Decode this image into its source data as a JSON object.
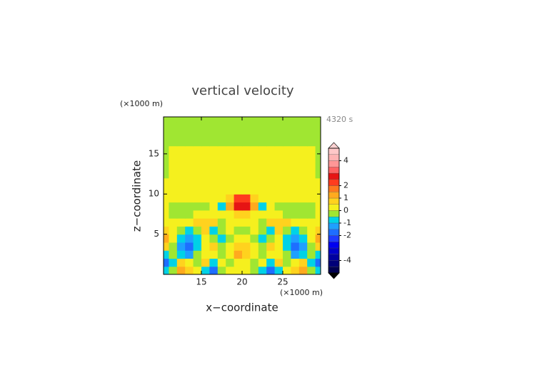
{
  "chart_data": {
    "type": "contour",
    "title": "vertical velocity",
    "xlabel": "x−coordinate",
    "ylabel": "z−coordinate",
    "x_unit": "(×1000 m)",
    "y_unit": "(×1000 m)",
    "time_label": "4320 s",
    "xlim": [
      10.35,
      29.65
    ],
    "ylim": [
      0,
      19.6
    ],
    "xticks": [
      15,
      20,
      25
    ],
    "yticks": [
      5,
      10,
      15
    ],
    "x": [
      10.5,
      11.5,
      12.5,
      13.5,
      14.5,
      15.5,
      16.5,
      17.5,
      18.5,
      19.5,
      20.5,
      21.5,
      22.5,
      23.5,
      24.5,
      25.5,
      26.5,
      27.5,
      28.5,
      29.5
    ],
    "z": [
      0.5,
      1.5,
      2.5,
      3.5,
      4.5,
      5.5,
      6.5,
      7.5,
      8.5,
      9.5,
      10.5,
      11.5,
      12.5,
      13.5,
      14.5,
      15.5,
      16.5,
      17.5,
      18.5,
      19.5
    ],
    "values": [
      [
        -0.75,
        -0.25,
        1.25,
        0.75,
        0.25,
        -0.75,
        -1.75,
        -0.25,
        0.25,
        0.25,
        0.25,
        -0.25,
        -0.75,
        -1.75,
        -0.75,
        0.25,
        0.75,
        1.25,
        -0.25,
        -0.75
      ],
      [
        -1.75,
        -0.75,
        0.75,
        0.25,
        -0.25,
        0.75,
        -0.75,
        0.25,
        -0.25,
        0.25,
        0.25,
        -0.25,
        0.25,
        -0.75,
        0.75,
        -0.25,
        0.25,
        0.75,
        -0.75,
        -1.75
      ],
      [
        -0.75,
        -0.25,
        -0.75,
        -1.25,
        -0.25,
        0.25,
        0.25,
        -0.25,
        0.25,
        1.25,
        0.75,
        0.25,
        -0.25,
        0.25,
        0.25,
        -0.25,
        -1.25,
        -0.75,
        -0.25,
        -0.75
      ],
      [
        0.75,
        -0.25,
        -1.25,
        -1.75,
        -0.75,
        0.25,
        0.75,
        -0.25,
        0.25,
        0.75,
        0.75,
        0.25,
        -0.25,
        0.75,
        0.25,
        -0.75,
        -1.75,
        -1.25,
        -0.25,
        0.75
      ],
      [
        1.25,
        0.25,
        -0.75,
        -1.25,
        -0.75,
        0.25,
        -0.25,
        -0.75,
        -0.25,
        0.25,
        0.25,
        -0.25,
        -0.75,
        -0.25,
        0.25,
        -0.75,
        -1.25,
        -0.75,
        0.25,
        1.25
      ],
      [
        0.75,
        0.25,
        -0.25,
        -0.75,
        -0.25,
        0.75,
        -0.75,
        -0.25,
        0.25,
        -0.25,
        -0.25,
        0.25,
        -0.25,
        -0.75,
        0.75,
        -0.25,
        -0.75,
        -0.25,
        0.25,
        0.75
      ],
      [
        0.25,
        0.25,
        0.25,
        0.25,
        0.75,
        0.75,
        0.75,
        -0.25,
        0.25,
        0.25,
        0.25,
        0.25,
        -0.25,
        0.75,
        0.75,
        0.75,
        0.25,
        0.25,
        0.25,
        0.25
      ],
      [
        0.25,
        -0.25,
        -0.25,
        -0.25,
        0.25,
        0.25,
        0.25,
        0.25,
        0.25,
        0.75,
        0.75,
        0.25,
        0.25,
        0.25,
        0.25,
        -0.25,
        -0.25,
        -0.25,
        -0.25,
        0.25
      ],
      [
        0.25,
        -0.25,
        -0.25,
        -0.25,
        -0.25,
        -0.25,
        0.25,
        -0.75,
        1.25,
        2.75,
        2.75,
        1.25,
        -0.75,
        0.25,
        -0.25,
        -0.25,
        -0.25,
        -0.25,
        -0.25,
        0.25
      ],
      [
        0.25,
        0.25,
        0.25,
        0.25,
        0.25,
        0.25,
        0.25,
        0.25,
        0.75,
        2.25,
        2.25,
        0.75,
        0.25,
        0.25,
        0.25,
        0.25,
        0.25,
        0.25,
        0.25,
        0.25
      ],
      [
        0.25,
        0.25,
        0.25,
        0.25,
        0.25,
        0.25,
        0.25,
        0.25,
        0.25,
        0.25,
        0.25,
        0.25,
        0.25,
        0.25,
        0.25,
        0.25,
        0.25,
        0.25,
        0.25,
        0.25
      ],
      [
        0.25,
        0.25,
        0.25,
        0.25,
        0.25,
        0.25,
        0.25,
        0.25,
        0.25,
        0.25,
        0.25,
        0.25,
        0.25,
        0.25,
        0.25,
        0.25,
        0.25,
        0.25,
        0.25,
        0.25
      ],
      [
        -0.25,
        0.25,
        0.25,
        0.25,
        0.25,
        0.25,
        0.25,
        0.25,
        0.25,
        0.25,
        0.25,
        0.25,
        0.25,
        0.25,
        0.25,
        0.25,
        0.25,
        0.25,
        0.25,
        -0.25
      ],
      [
        -0.25,
        0.25,
        0.25,
        0.25,
        0.25,
        0.25,
        0.25,
        0.25,
        0.25,
        0.25,
        0.25,
        0.25,
        0.25,
        0.25,
        0.25,
        0.25,
        0.25,
        0.25,
        0.25,
        -0.25
      ],
      [
        -0.25,
        0.25,
        0.25,
        0.25,
        0.25,
        0.25,
        0.25,
        0.25,
        0.25,
        0.25,
        0.25,
        0.25,
        0.25,
        0.25,
        0.25,
        0.25,
        0.25,
        0.25,
        0.25,
        -0.25
      ],
      [
        -0.25,
        0.25,
        0.25,
        0.25,
        0.25,
        0.25,
        0.25,
        0.25,
        0.25,
        0.25,
        0.25,
        0.25,
        0.25,
        0.25,
        0.25,
        0.25,
        0.25,
        0.25,
        0.25,
        -0.25
      ],
      [
        -0.25,
        -0.25,
        -0.25,
        -0.25,
        -0.25,
        -0.25,
        -0.25,
        -0.25,
        -0.25,
        -0.25,
        -0.25,
        -0.25,
        -0.25,
        -0.25,
        -0.25,
        -0.25,
        -0.25,
        -0.25,
        -0.25,
        -0.25
      ],
      [
        -0.25,
        -0.25,
        -0.25,
        -0.25,
        -0.25,
        -0.25,
        -0.25,
        -0.25,
        -0.25,
        -0.25,
        -0.25,
        -0.25,
        -0.25,
        -0.25,
        -0.25,
        -0.25,
        -0.25,
        -0.25,
        -0.25,
        -0.25
      ],
      [
        -0.25,
        -0.25,
        -0.25,
        -0.25,
        -0.25,
        -0.25,
        -0.25,
        -0.25,
        -0.25,
        -0.25,
        -0.25,
        -0.25,
        -0.25,
        -0.25,
        -0.25,
        -0.25,
        -0.25,
        -0.25,
        -0.25,
        -0.25
      ],
      [
        -0.25,
        -0.25,
        -0.25,
        -0.25,
        -0.25,
        -0.25,
        -0.25,
        -0.25,
        -0.25,
        -0.25,
        -0.25,
        -0.25,
        -0.25,
        -0.25,
        -0.25,
        -0.25,
        -0.25,
        -0.25,
        -0.25,
        -0.25
      ]
    ],
    "levels": [
      -5,
      -4.5,
      -4,
      -3.5,
      -3,
      -2.5,
      -2,
      -1.5,
      -1,
      -0.5,
      0,
      0.5,
      1,
      1.5,
      2,
      2.5,
      3,
      3.5,
      4,
      4.5,
      5
    ],
    "colors": [
      "#000050",
      "#000078",
      "#0000a0",
      "#0000c8",
      "#0000f0",
      "#1e3cff",
      "#1e6eff",
      "#1ea0ff",
      "#00d2e6",
      "#a0e632",
      "#f5f01e",
      "#ffd21e",
      "#ffaa1e",
      "#ff781e",
      "#ff3c1e",
      "#e61414",
      "#ff6464",
      "#ff9696",
      "#ffb4b4",
      "#ffc8c8"
    ],
    "under_color": "#000000",
    "over_color": "#ffd2d2",
    "colorbar_ticks": [
      -4,
      -2,
      -1,
      0,
      1,
      2,
      4
    ]
  }
}
